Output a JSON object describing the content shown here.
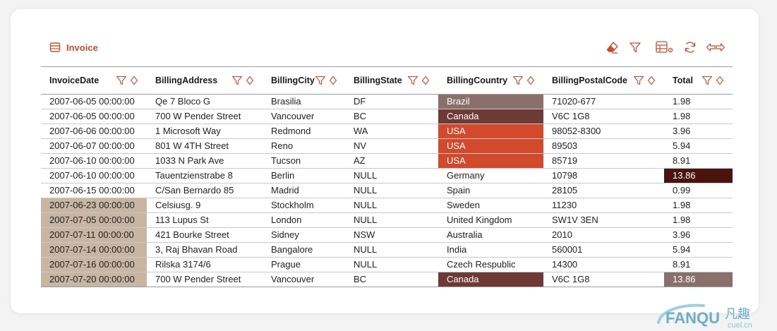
{
  "title": "Invoice",
  "columns": [
    {
      "key": "date",
      "label": "InvoiceDate"
    },
    {
      "key": "address",
      "label": "BillingAddress"
    },
    {
      "key": "city",
      "label": "BillingCity"
    },
    {
      "key": "state",
      "label": "BillingState"
    },
    {
      "key": "country",
      "label": "BillingCountry"
    },
    {
      "key": "postal",
      "label": "BillingPostalCode"
    },
    {
      "key": "total",
      "label": "Total"
    }
  ],
  "rows": [
    {
      "date": "2007-06-05 00:00:00",
      "address": "Qe 7 Bloco G",
      "city": "Brasilia",
      "state": "DF",
      "country": "Brazil",
      "postal": "71020-677",
      "total": "1.98",
      "date_bg": "",
      "country_bg": "#8a706a",
      "total_bg": ""
    },
    {
      "date": "2007-06-05 00:00:00",
      "address": "700 W Pender Street",
      "city": "Vancouver",
      "state": "BC",
      "country": "Canada",
      "postal": "V6C 1G8",
      "total": "1.98",
      "date_bg": "",
      "country_bg": "#6e3a35",
      "total_bg": ""
    },
    {
      "date": "2007-06-06 00:00:00",
      "address": "1 Microsoft Way",
      "city": "Redmond",
      "state": "WA",
      "country": "USA",
      "postal": "98052-8300",
      "total": "3.96",
      "date_bg": "",
      "country_bg": "#d24a2b",
      "total_bg": ""
    },
    {
      "date": "2007-06-07 00:00:00",
      "address": "801 W 4TH Street",
      "city": "Reno",
      "state": "NV",
      "country": "USA",
      "postal": "89503",
      "total": "5.94",
      "date_bg": "",
      "country_bg": "#d24a2b",
      "total_bg": ""
    },
    {
      "date": "2007-06-10 00:00:00",
      "address": "1033 N Park Ave",
      "city": "Tucson",
      "state": "AZ",
      "country": "USA",
      "postal": "85719",
      "total": "8.91",
      "date_bg": "",
      "country_bg": "#d24a2b",
      "total_bg": ""
    },
    {
      "date": "2007-06-10 00:00:00",
      "address": "Tauentzienstrabe 8",
      "city": "Berlin",
      "state": "NULL",
      "country": "Germany",
      "postal": "10798",
      "total": "13.86",
      "date_bg": "",
      "country_bg": "",
      "total_bg": "#4a130c"
    },
    {
      "date": "2007-06-15 00:00:00",
      "address": "C/San Bernardo 85",
      "city": "Madrid",
      "state": "NULL",
      "country": "Spain",
      "postal": "28105",
      "total": "0.99",
      "date_bg": "",
      "country_bg": "",
      "total_bg": ""
    },
    {
      "date": "2007-06-23 00:00:00",
      "address": "Celsiusg. 9",
      "city": "Stockholm",
      "state": "NULL",
      "country": "Sweden",
      "postal": "11230",
      "total": "1.98",
      "date_bg": "#c8b6a2",
      "country_bg": "",
      "total_bg": ""
    },
    {
      "date": "2007-07-05 00:00:00",
      "address": "113 Lupus St",
      "city": "London",
      "state": "NULL",
      "country": "United Kingdom",
      "postal": "SW1V 3EN",
      "total": "1.98",
      "date_bg": "#c8b6a2",
      "country_bg": "",
      "total_bg": ""
    },
    {
      "date": "2007-07-11 00:00:00",
      "address": "421 Bourke Street",
      "city": "Sidney",
      "state": "NSW",
      "country": "Australia",
      "postal": "2010",
      "total": "3.96",
      "date_bg": "#c8b6a2",
      "country_bg": "",
      "total_bg": ""
    },
    {
      "date": "2007-07-14 00:00:00",
      "address": "3, Raj Bhavan Road",
      "city": "Bangalore",
      "state": "NULL",
      "country": "India",
      "postal": "560001",
      "total": "5.94",
      "date_bg": "#c8b6a2",
      "country_bg": "",
      "total_bg": ""
    },
    {
      "date": "2007-07-16 00:00:00",
      "address": "Rilska 3174/6",
      "city": "Prague",
      "state": "NULL",
      "country": "Czech Respublic",
      "postal": "14300",
      "total": "8.91",
      "date_bg": "#c8b6a2",
      "country_bg": "",
      "total_bg": ""
    },
    {
      "date": "2007-07-20 00:00:00",
      "address": "700 W Pender Street",
      "city": "Vancouver",
      "state": "BC",
      "country": "Canada",
      "postal": "V6C 1G8",
      "total": "13.86",
      "date_bg": "#c8b6a2",
      "country_bg": "#6e3a35",
      "total_bg": "#8a706a"
    }
  ],
  "toolbar": {
    "icons": [
      "eraser-icon",
      "filter-icon",
      "table-settings-icon",
      "refresh-icon",
      "expand-arrows-icon"
    ]
  },
  "accent_color": "#d24a2b",
  "watermark": {
    "brand": "FANQU",
    "cn": "凡趣",
    "sub": "cuel.cn"
  }
}
